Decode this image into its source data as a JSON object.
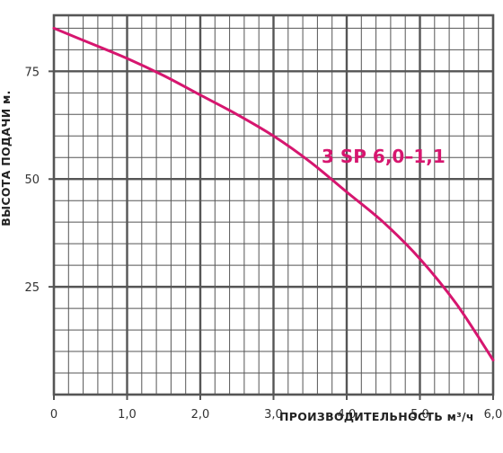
{
  "chart_data": {
    "type": "line",
    "xlabel": "ПРОИЗВОДИТЕЛЬНОСТЬ м³/ч",
    "ylabel": "ВЫСОТА ПОДАЧИ м.",
    "xlim": [
      0,
      6
    ],
    "ylim": [
      0,
      88
    ],
    "x_ticks": [
      "0",
      "1,0",
      "2,0",
      "3,0",
      "4,0",
      "5,0",
      "6,0"
    ],
    "y_ticks": [
      "25",
      "50",
      "75"
    ],
    "grid": true,
    "series": [
      {
        "name": "3 SP 6,0–1,1",
        "color": "#d6166f",
        "x": [
          0,
          0.5,
          1.0,
          1.5,
          2.0,
          2.5,
          3.0,
          3.5,
          4.0,
          4.5,
          5.0,
          5.5,
          6.0
        ],
        "y": [
          85,
          81.5,
          78,
          74,
          69.5,
          65,
          60,
          54,
          47,
          40,
          31.5,
          21,
          8
        ]
      }
    ]
  }
}
